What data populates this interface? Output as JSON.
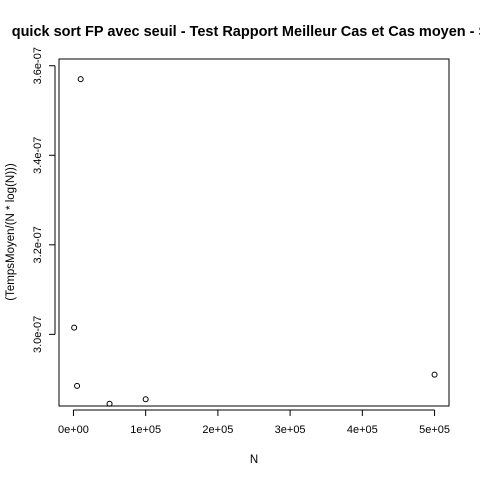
{
  "chart_data": {
    "type": "scatter",
    "title": "quick sort FP avec seuil - Test Rapport Meilleur Cas et Cas moyen - Se",
    "xlabel": "N",
    "ylabel": "(TempsMoyen/(N * log(N)))",
    "x_ticks": [
      "0e+00",
      "1e+05",
      "2e+05",
      "3e+05",
      "4e+05",
      "5e+05"
    ],
    "y_ticks": [
      "3.0e-07",
      "3.2e-07",
      "3.4e-07",
      "3.6e-07"
    ],
    "xlim": [
      -20000,
      520000
    ],
    "ylim": [
      2.84e-07,
      3.615e-07
    ],
    "points": [
      {
        "x": 1000,
        "y": 3.015e-07
      },
      {
        "x": 5000,
        "y": 2.885e-07
      },
      {
        "x": 10000,
        "y": 3.57e-07
      },
      {
        "x": 50000,
        "y": 2.845e-07
      },
      {
        "x": 100000,
        "y": 2.855e-07
      },
      {
        "x": 500000,
        "y": 2.91e-07
      }
    ],
    "grid": false,
    "legend": "none"
  },
  "colors": {
    "background": "#ffffff",
    "foreground": "#000000"
  }
}
